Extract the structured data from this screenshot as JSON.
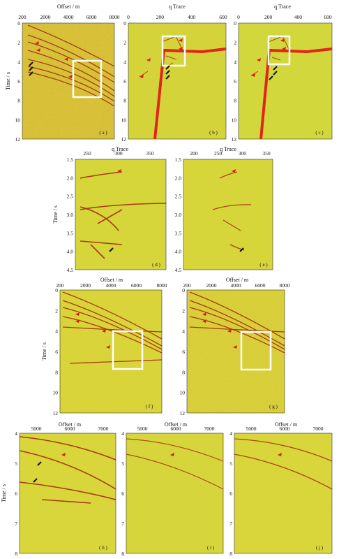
{
  "colors": {
    "background": "#d8d83a",
    "event_red": "#a0200c",
    "overlay_red": "#e0261a",
    "box": "#ffffff",
    "arrow_red": "#d42010",
    "arrow_black": "#111111"
  },
  "panels": {
    "a": {
      "label": "( a )",
      "xlabel": "Offset / m",
      "ylabel": "Time / s",
      "xticks": [
        "200",
        "2000",
        "4000",
        "6000",
        "8000"
      ],
      "yticks": [
        "0",
        "2",
        "4",
        "6",
        "8",
        "10",
        "12"
      ]
    },
    "b": {
      "label": "( b )",
      "xlabel": "q Trace",
      "xticks": [
        "0",
        "200",
        "400",
        "600"
      ],
      "yticks": [
        "0",
        "2",
        "4",
        "6",
        "8",
        "10",
        "12"
      ]
    },
    "c": {
      "label": "( c )",
      "xlabel": "q Trace",
      "xticks": [
        "0",
        "200",
        "400",
        "600"
      ],
      "yticks": [
        "0",
        "2",
        "4",
        "6",
        "8",
        "10",
        "12"
      ]
    },
    "d": {
      "label": "( d )",
      "xlabel": "q Trace",
      "ylabel": "Time / s",
      "xticks": [
        "250",
        "300",
        "350"
      ],
      "yticks": [
        "1.5",
        "2.0",
        "2.5",
        "3.0",
        "3.5",
        "4.0",
        "4.5"
      ]
    },
    "e": {
      "label": "( e )",
      "xlabel": "q Trace",
      "xticks": [
        "200",
        "250",
        "300",
        "350"
      ],
      "yticks": [
        "1.5",
        "2.0",
        "2.5",
        "3.0",
        "3.5",
        "4.0",
        "4.5"
      ]
    },
    "f": {
      "label": "( f )",
      "xlabel": "Offset / m",
      "ylabel": "Time / s",
      "xticks": [
        "200",
        "2000",
        "4000",
        "6000",
        "8000"
      ],
      "yticks": [
        "0",
        "2",
        "4",
        "6",
        "8",
        "10",
        "12"
      ]
    },
    "g": {
      "label": "( g )",
      "xlabel": "Offset / m",
      "xticks": [
        "200",
        "2000",
        "4000",
        "6000",
        "8000"
      ],
      "yticks": [
        "0",
        "2",
        "4",
        "6",
        "8",
        "10",
        "12"
      ]
    },
    "h": {
      "label": "( h )",
      "xlabel": "Offset / m",
      "ylabel": "Time / s",
      "xticks": [
        "5000",
        "6000",
        "7000"
      ],
      "yticks": [
        "4",
        "5",
        "6",
        "7",
        "8"
      ]
    },
    "i": {
      "label": "( i )",
      "xlabel": "Offset / m",
      "xticks": [
        "5000",
        "6000",
        "7000"
      ],
      "yticks": [
        "4",
        "5",
        "6",
        "7",
        "8"
      ]
    },
    "j": {
      "label": "( j )",
      "xlabel": "Offset / m",
      "xticks": [
        "5000",
        "6000",
        "7000"
      ],
      "yticks": [
        "4",
        "5",
        "6",
        "7",
        "8"
      ]
    }
  }
}
